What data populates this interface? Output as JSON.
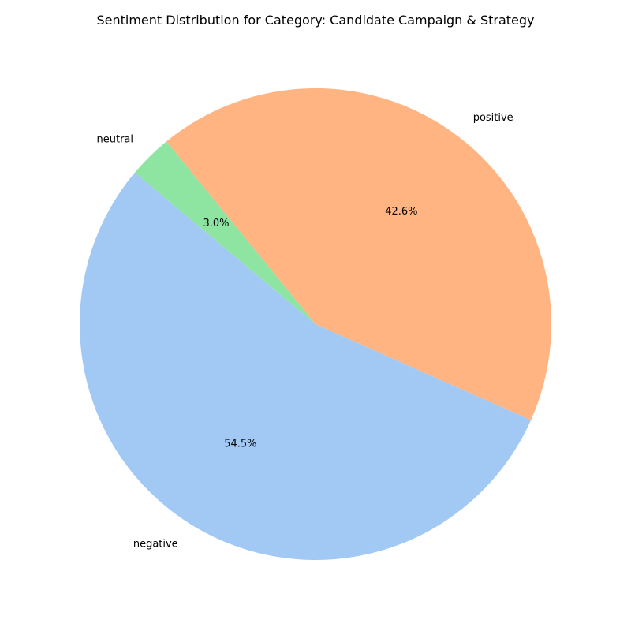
{
  "chart_data": {
    "type": "pie",
    "title": "Sentiment Distribution for Category: Candidate Campaign & Strategy",
    "start_angle_deg": 140,
    "direction": "counterclockwise",
    "slices": [
      {
        "label": "negative",
        "value": 54.5,
        "percent_label": "54.5%",
        "color": "#a1c9f4"
      },
      {
        "label": "positive",
        "value": 42.6,
        "percent_label": "42.6%",
        "color": "#ffb482"
      },
      {
        "label": "neutral",
        "value": 3.0,
        "percent_label": "3.0%",
        "color": "#8de5a1"
      }
    ]
  }
}
